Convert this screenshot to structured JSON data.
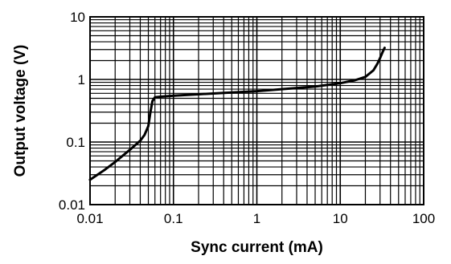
{
  "chart_data": {
    "type": "line",
    "title": "",
    "xlabel": "Sync current (mA)",
    "ylabel": "Output voltage (V)",
    "xscale": "log",
    "yscale": "log",
    "xlim": [
      0.01,
      100
    ],
    "ylim": [
      0.01,
      10
    ],
    "grid": true,
    "x_tick_labels": [
      "0.01",
      "0.1",
      "1",
      "10",
      "100"
    ],
    "y_tick_labels": [
      "0.01",
      "0.1",
      "1",
      "10"
    ],
    "series": [
      {
        "x": [
          0.01,
          0.015,
          0.02,
          0.03,
          0.04,
          0.045,
          0.05,
          0.053,
          0.056,
          0.06,
          0.07,
          0.1,
          0.2,
          0.5,
          1,
          2,
          5,
          10,
          15,
          20,
          25,
          28,
          30,
          32,
          34
        ],
        "y": [
          0.025,
          0.036,
          0.048,
          0.075,
          0.105,
          0.13,
          0.18,
          0.3,
          0.45,
          0.52,
          0.53,
          0.55,
          0.58,
          0.62,
          0.65,
          0.7,
          0.77,
          0.87,
          0.97,
          1.1,
          1.4,
          1.8,
          2.2,
          2.7,
          3.2
        ]
      }
    ]
  }
}
